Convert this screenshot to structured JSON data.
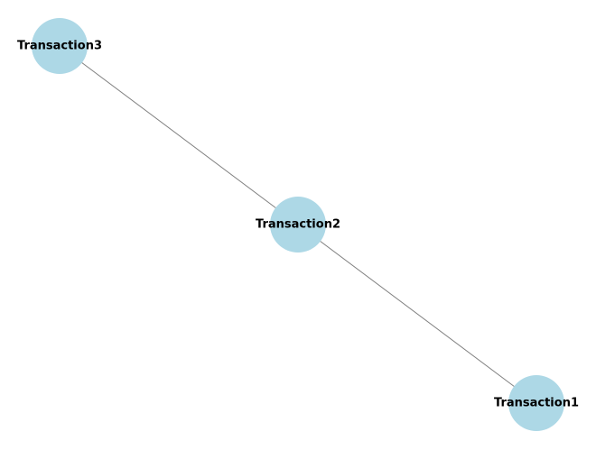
{
  "graph": {
    "node_color": "#add8e6",
    "edge_color": "#808080",
    "label_color": "#000000",
    "nodes": [
      {
        "id": "Transaction1",
        "label": "Transaction1"
      },
      {
        "id": "Transaction2",
        "label": "Transaction2"
      },
      {
        "id": "Transaction3",
        "label": "Transaction3"
      }
    ],
    "edges": [
      {
        "source": "Transaction1",
        "target": "Transaction2"
      },
      {
        "source": "Transaction2",
        "target": "Transaction3"
      }
    ]
  }
}
